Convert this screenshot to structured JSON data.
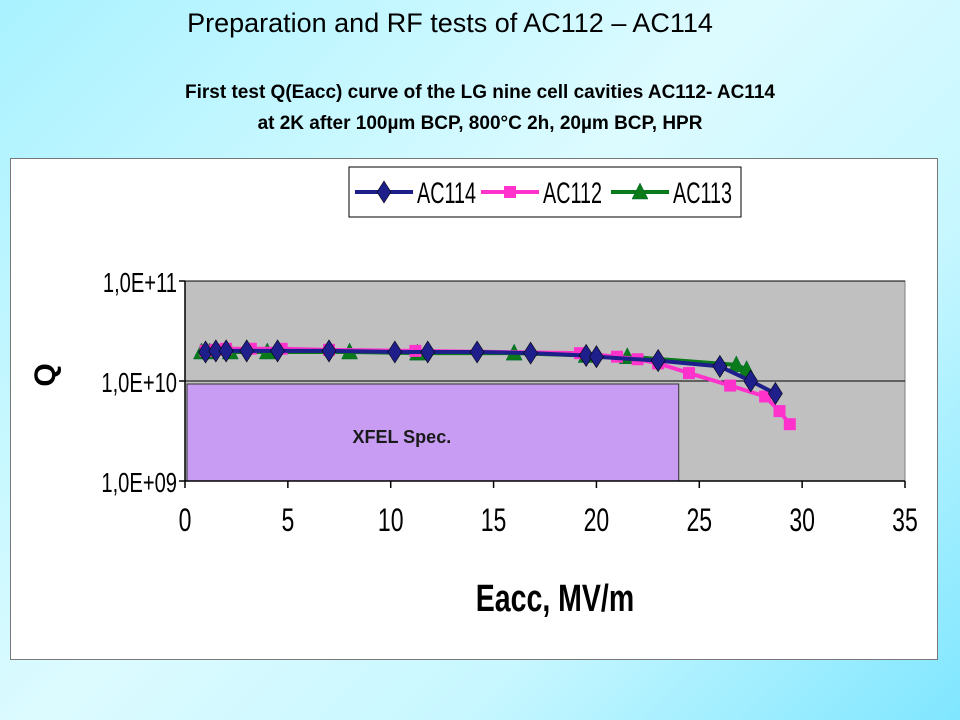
{
  "slide": {
    "title": "Preparation and RF tests of AC112 – AC114",
    "subtitle_line1": "First test Q(Eacc) curve of the LG nine cell cavities AC112- AC114",
    "subtitle_line2": "at 2K after 100µm BCP, 800°C 2h, 20µm BCP, HPR"
  },
  "chart_data": {
    "type": "scatter",
    "xlabel": "Eacc, MV/m",
    "ylabel": "Q",
    "xlim": [
      0,
      35
    ],
    "ylim": [
      1000000000.0,
      100000000000.0
    ],
    "yscale": "log",
    "x_ticks": [
      "0",
      "5",
      "10",
      "15",
      "20",
      "25",
      "30",
      "35"
    ],
    "y_ticks": [
      "1,0E+09",
      "1,0E+10",
      "1,0E+11"
    ],
    "grid": "horizontal",
    "plot_background": "#c0c0c0",
    "legend_position": "top",
    "annotation": {
      "label": "XFEL Spec.",
      "x_range": [
        0,
        24
      ],
      "y_range": [
        1000000000.0,
        10000000000.0
      ],
      "color": "#c79cf2"
    },
    "series": [
      {
        "name": "AC114",
        "color": "#1f1f8c",
        "marker": "diamond",
        "x": [
          1.0,
          1.5,
          2.0,
          3.0,
          4.5,
          7.0,
          10.2,
          11.8,
          14.2,
          16.8,
          19.5,
          20.0,
          23.0,
          26.0,
          27.5,
          28.7
        ],
        "y": [
          19500000000.0,
          20000000000.0,
          20000000000.0,
          20000000000.0,
          20000000000.0,
          20000000000.0,
          19500000000.0,
          19500000000.0,
          19500000000.0,
          19000000000.0,
          18000000000.0,
          17500000000.0,
          16000000000.0,
          14000000000.0,
          10000000000.0,
          7500000000.0
        ]
      },
      {
        "name": "AC112",
        "color": "#ff33cc",
        "marker": "square",
        "x": [
          1.0,
          1.5,
          2.0,
          3.2,
          4.7,
          7.0,
          11.2,
          19.2,
          21.0,
          22.0,
          23.0,
          24.5,
          26.5,
          28.2,
          28.9,
          29.4
        ],
        "y": [
          20000000000.0,
          20500000000.0,
          21000000000.0,
          21000000000.0,
          21000000000.0,
          20500000000.0,
          20000000000.0,
          19000000000.0,
          17500000000.0,
          16500000000.0,
          15000000000.0,
          12000000000.0,
          9000000000.0,
          7000000000.0,
          5000000000.0,
          3700000000.0
        ]
      },
      {
        "name": "AC113",
        "color": "#0a7a1a",
        "marker": "triangle",
        "x": [
          0.8,
          1.2,
          2.2,
          4.0,
          8.0,
          11.3,
          16.0,
          19.5,
          21.5,
          26.8,
          27.3
        ],
        "y": [
          19500000000.0,
          19500000000.0,
          19500000000.0,
          19500000000.0,
          19500000000.0,
          19000000000.0,
          19000000000.0,
          18000000000.0,
          17500000000.0,
          14500000000.0,
          13000000000.0
        ]
      }
    ]
  }
}
